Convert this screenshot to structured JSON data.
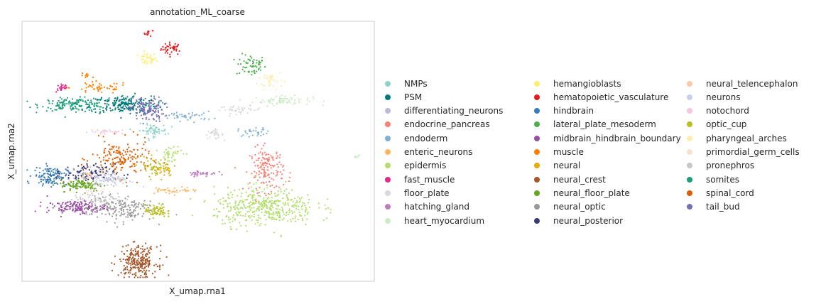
{
  "chart_data": {
    "type": "scatter",
    "title": "annotation_ML_coarse",
    "xlabel": "X_umap.rna1",
    "ylabel": "X_umap.rna2",
    "xticks": [],
    "yticks": [],
    "grid": false,
    "legend_position": "right, outside plot, 3 columns",
    "categories": [
      {
        "name": "NMPs",
        "color": "#8dd3c7"
      },
      {
        "name": "PSM",
        "color": "#00797a"
      },
      {
        "name": "differentiating_neurons",
        "color": "#bebada"
      },
      {
        "name": "endocrine_pancreas",
        "color": "#fb8072"
      },
      {
        "name": "endoderm",
        "color": "#80b1d3"
      },
      {
        "name": "enteric_neurons",
        "color": "#fdb462"
      },
      {
        "name": "epidermis",
        "color": "#b3de69"
      },
      {
        "name": "fast_muscle",
        "color": "#e7298a"
      },
      {
        "name": "floor_plate",
        "color": "#d9d9d9"
      },
      {
        "name": "hatching_gland",
        "color": "#bc80bd"
      },
      {
        "name": "heart_myocardium",
        "color": "#ccebc5"
      },
      {
        "name": "hemangioblasts",
        "color": "#ffed6f"
      },
      {
        "name": "hematopoietic_vasculature",
        "color": "#e41a1c"
      },
      {
        "name": "hindbrain",
        "color": "#377eb8"
      },
      {
        "name": "lateral_plate_mesoderm",
        "color": "#4daf4a"
      },
      {
        "name": "midbrain_hindbrain_boundary",
        "color": "#984ea3"
      },
      {
        "name": "muscle",
        "color": "#ff7f00"
      },
      {
        "name": "neural",
        "color": "#e6ab02"
      },
      {
        "name": "neural_crest",
        "color": "#a65628"
      },
      {
        "name": "neural_floor_plate",
        "color": "#66a61e"
      },
      {
        "name": "neural_optic",
        "color": "#999999"
      },
      {
        "name": "neural_posterior",
        "color": "#393b79"
      },
      {
        "name": "neural_telencephalon",
        "color": "#fdc8a8"
      },
      {
        "name": "neurons",
        "color": "#c6d0ea"
      },
      {
        "name": "notochord",
        "color": "#f4c6e0"
      },
      {
        "name": "optic_cup",
        "color": "#bcbd22"
      },
      {
        "name": "pharyngeal_arches",
        "color": "#fdedb0"
      },
      {
        "name": "primordial_germ_cells",
        "color": "#f5e1cf"
      },
      {
        "name": "pronephros",
        "color": "#c7c7c7"
      },
      {
        "name": "somites",
        "color": "#1b9e77"
      },
      {
        "name": "spinal_cord",
        "color": "#d95f02"
      },
      {
        "name": "tail_bud",
        "color": "#7570b3"
      }
    ],
    "clusters": [
      {
        "category": "hematopoietic_vasculature",
        "cx": 0.425,
        "cy": 0.895,
        "rx": 0.025,
        "ry": 0.02,
        "n": 40
      },
      {
        "category": "hematopoietic_vasculature",
        "cx": 0.36,
        "cy": 0.955,
        "rx": 0.012,
        "ry": 0.01,
        "n": 12
      },
      {
        "category": "hemangioblasts",
        "cx": 0.355,
        "cy": 0.855,
        "rx": 0.022,
        "ry": 0.02,
        "n": 35
      },
      {
        "category": "lateral_plate_mesoderm",
        "cx": 0.65,
        "cy": 0.83,
        "rx": 0.035,
        "ry": 0.035,
        "n": 60
      },
      {
        "category": "pharyngeal_arches",
        "cx": 0.705,
        "cy": 0.775,
        "rx": 0.03,
        "ry": 0.03,
        "n": 40
      },
      {
        "category": "heart_myocardium",
        "cx": 0.74,
        "cy": 0.695,
        "rx": 0.07,
        "ry": 0.015,
        "n": 70
      },
      {
        "category": "floor_plate",
        "cx": 0.62,
        "cy": 0.66,
        "rx": 0.05,
        "ry": 0.012,
        "n": 40
      },
      {
        "category": "floor_plate",
        "cx": 0.545,
        "cy": 0.565,
        "rx": 0.022,
        "ry": 0.015,
        "n": 30
      },
      {
        "category": "fast_muscle",
        "cx": 0.115,
        "cy": 0.745,
        "rx": 0.015,
        "ry": 0.015,
        "n": 25
      },
      {
        "category": "muscle",
        "cx": 0.22,
        "cy": 0.745,
        "rx": 0.07,
        "ry": 0.02,
        "n": 50
      },
      {
        "category": "muscle",
        "cx": 0.18,
        "cy": 0.79,
        "rx": 0.01,
        "ry": 0.012,
        "n": 10
      },
      {
        "category": "somites",
        "cx": 0.15,
        "cy": 0.68,
        "rx": 0.08,
        "ry": 0.02,
        "n": 160
      },
      {
        "category": "PSM",
        "cx": 0.29,
        "cy": 0.68,
        "rx": 0.08,
        "ry": 0.03,
        "n": 190
      },
      {
        "category": "tail_bud",
        "cx": 0.355,
        "cy": 0.66,
        "rx": 0.04,
        "ry": 0.04,
        "n": 130
      },
      {
        "category": "endoderm",
        "cx": 0.47,
        "cy": 0.635,
        "rx": 0.06,
        "ry": 0.015,
        "n": 45
      },
      {
        "category": "endoderm",
        "cx": 0.66,
        "cy": 0.575,
        "rx": 0.04,
        "ry": 0.015,
        "n": 30
      },
      {
        "category": "NMPs",
        "cx": 0.37,
        "cy": 0.58,
        "rx": 0.035,
        "ry": 0.02,
        "n": 60
      },
      {
        "category": "notochord",
        "cx": 0.25,
        "cy": 0.575,
        "rx": 0.05,
        "ry": 0.008,
        "n": 25
      },
      {
        "category": "endocrine_pancreas",
        "cx": 0.695,
        "cy": 0.43,
        "rx": 0.04,
        "ry": 0.07,
        "n": 160
      },
      {
        "category": "spinal_cord",
        "cx": 0.28,
        "cy": 0.47,
        "rx": 0.07,
        "ry": 0.06,
        "n": 170
      },
      {
        "category": "hindbrain",
        "cx": 0.08,
        "cy": 0.405,
        "rx": 0.04,
        "ry": 0.03,
        "n": 120
      },
      {
        "category": "neural_posterior",
        "cx": 0.18,
        "cy": 0.415,
        "rx": 0.07,
        "ry": 0.03,
        "n": 110
      },
      {
        "category": "differentiating_neurons",
        "cx": 0.22,
        "cy": 0.4,
        "rx": 0.05,
        "ry": 0.03,
        "n": 60
      },
      {
        "category": "neural_floor_plate",
        "cx": 0.17,
        "cy": 0.37,
        "rx": 0.05,
        "ry": 0.02,
        "n": 110
      },
      {
        "category": "neurons",
        "cx": 0.26,
        "cy": 0.39,
        "rx": 0.05,
        "ry": 0.02,
        "n": 40
      },
      {
        "category": "hatching_gland",
        "cx": 0.51,
        "cy": 0.415,
        "rx": 0.035,
        "ry": 0.01,
        "n": 40
      },
      {
        "category": "optic_cup",
        "cx": 0.38,
        "cy": 0.44,
        "rx": 0.04,
        "ry": 0.03,
        "n": 60
      },
      {
        "category": "epidermis",
        "cx": 0.42,
        "cy": 0.49,
        "rx": 0.03,
        "ry": 0.03,
        "n": 40
      },
      {
        "category": "midbrain_hindbrain_boundary",
        "cx": 0.155,
        "cy": 0.285,
        "rx": 0.07,
        "ry": 0.02,
        "n": 160
      },
      {
        "category": "neural_optic",
        "cx": 0.28,
        "cy": 0.28,
        "rx": 0.08,
        "ry": 0.04,
        "n": 170
      },
      {
        "category": "optic_cup",
        "cx": 0.38,
        "cy": 0.27,
        "rx": 0.025,
        "ry": 0.02,
        "n": 70
      },
      {
        "category": "pronephros",
        "cx": 0.22,
        "cy": 0.32,
        "rx": 0.06,
        "ry": 0.02,
        "n": 60
      },
      {
        "category": "enteric_neurons",
        "cx": 0.43,
        "cy": 0.35,
        "rx": 0.06,
        "ry": 0.01,
        "n": 40
      },
      {
        "category": "epidermis",
        "cx": 0.69,
        "cy": 0.285,
        "rx": 0.12,
        "ry": 0.06,
        "n": 420
      },
      {
        "category": "neural_crest",
        "cx": 0.33,
        "cy": 0.075,
        "rx": 0.045,
        "ry": 0.05,
        "n": 260
      },
      {
        "category": "neural_telencephalon",
        "cx": 0.18,
        "cy": 0.41,
        "rx": 0.03,
        "ry": 0.02,
        "n": 20
      },
      {
        "category": "primordial_germ_cells",
        "cx": 0.2,
        "cy": 0.35,
        "rx": 0.03,
        "ry": 0.01,
        "n": 10
      },
      {
        "category": "neural",
        "cx": 0.4,
        "cy": 0.42,
        "rx": 0.03,
        "ry": 0.02,
        "n": 20
      },
      {
        "category": "heart_myocardium",
        "cx": 0.95,
        "cy": 0.48,
        "rx": 0.008,
        "ry": 0.006,
        "n": 8
      }
    ]
  }
}
